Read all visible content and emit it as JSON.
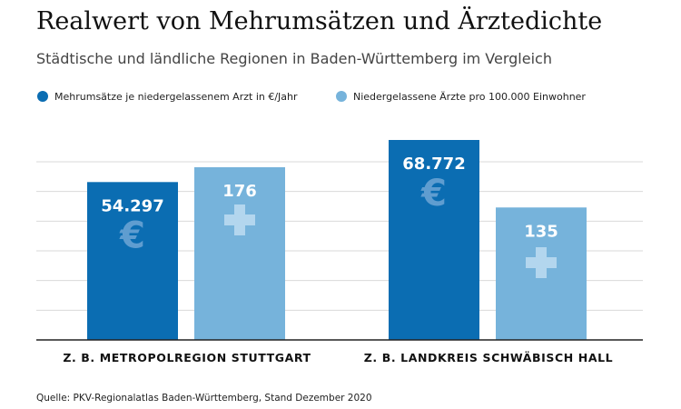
{
  "title": "Realwert von Mehrumsätzen und Ärztedichte",
  "subtitle": "Städtische und ländliche Regionen in Baden-Württemberg im Vergleich",
  "source": "Quelle: PKV-Regionalatlas Baden-Württemberg, Stand Dezember 2020",
  "colors": {
    "series1": "#0b6db2",
    "series2": "#76b3db",
    "grid": "#d9d9d9",
    "axis": "#222222"
  },
  "chart_data": {
    "type": "bar",
    "categories": [
      "Z. B. METROPOLREGION STUTTGART",
      "Z. B. LANDKREIS SCHWÄBISCH HALL"
    ],
    "series": [
      {
        "name": "Mehrumsätze je niedergelassenem Arzt in €/Jahr",
        "values": [
          54297,
          68772
        ],
        "labels": [
          "54.297",
          "68.772"
        ],
        "icon": "euro-icon"
      },
      {
        "name": "Niedergelassene Ärzte pro 100.000 Einwohner",
        "values": [
          176,
          135
        ],
        "labels": [
          "176",
          "135"
        ],
        "icon": "cross-icon"
      }
    ],
    "grid": true,
    "legend": "top-left"
  }
}
